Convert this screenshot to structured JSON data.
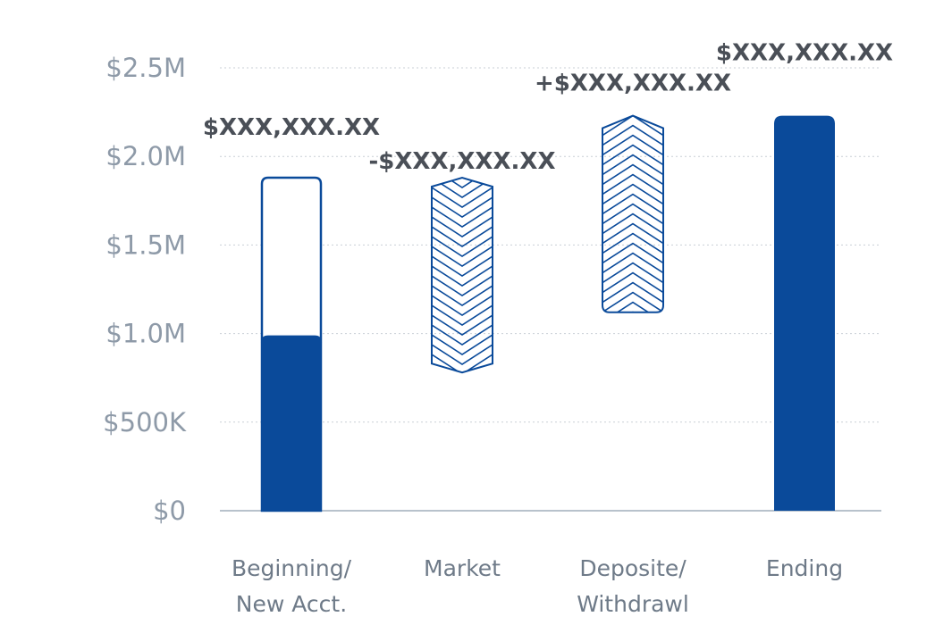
{
  "chart_data": {
    "type": "bar",
    "subtype": "waterfall",
    "title": "",
    "xlabel": "",
    "ylabel": "",
    "ylim": [
      0,
      2500000
    ],
    "grid": true,
    "legend": "none",
    "yticks": [
      {
        "value": 0,
        "label": "$0"
      },
      {
        "value": 500000,
        "label": "$500K"
      },
      {
        "value": 1000000,
        "label": "$1.0M"
      },
      {
        "value": 1500000,
        "label": "$1.5M"
      },
      {
        "value": 2000000,
        "label": "$2.0M"
      },
      {
        "value": 2500000,
        "label": "$2.5M"
      }
    ],
    "categories": [
      {
        "label_lines": [
          "Beginning/",
          "New Acct."
        ],
        "kind": "beginning",
        "filled": [
          0,
          990000
        ],
        "outline": [
          0,
          1880000
        ],
        "value_label": "$XXX,XXX.XX"
      },
      {
        "label_lines": [
          "Market"
        ],
        "kind": "decrease",
        "range": [
          780000,
          1880000
        ],
        "value_label": "-$XXX,XXX.XX"
      },
      {
        "label_lines": [
          "Deposite/",
          "Withdrawl"
        ],
        "kind": "increase",
        "range": [
          1120000,
          2230000
        ],
        "value_label": "+$XXX,XXX.XX"
      },
      {
        "label_lines": [
          "Ending"
        ],
        "kind": "ending",
        "filled": [
          0,
          2230000
        ],
        "value_label": "$XXX,XXX.XX"
      }
    ],
    "colors": {
      "primary": "#0a4a9a",
      "axis": "#b8c2cc",
      "grid": "#c9cfd6"
    }
  }
}
